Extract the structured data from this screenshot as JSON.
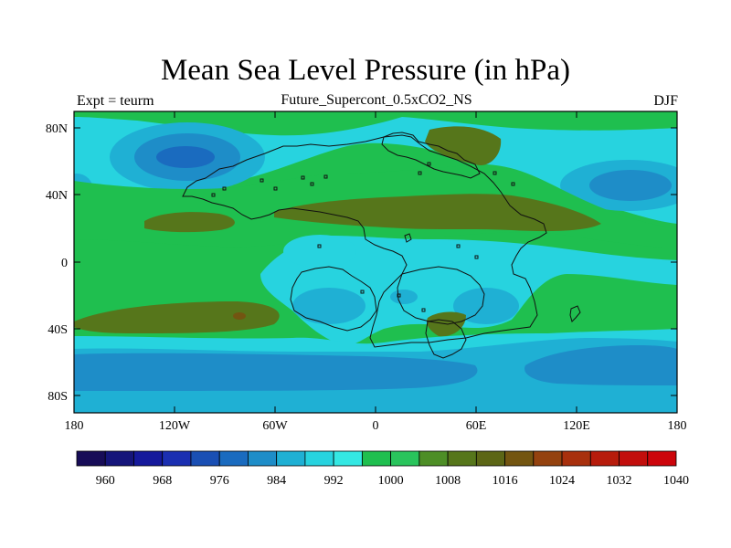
{
  "title": "Mean Sea Level Pressure (in hPa)",
  "subtitle": "Future_Supercont_0.5xCO2_NS",
  "left_label": "Expt = teurm",
  "right_label": "DJF",
  "lat_ticks": [
    "80N",
    "40N",
    "0",
    "40S",
    "80S"
  ],
  "lon_ticks": [
    "180",
    "120W",
    "60W",
    "0",
    "60E",
    "120E",
    "180"
  ],
  "colorbar": {
    "labels": [
      "960",
      "968",
      "976",
      "984",
      "992",
      "1000",
      "1008",
      "1016",
      "1024",
      "1032",
      "1040"
    ],
    "colors": [
      "#170c57",
      "#15157a",
      "#15199b",
      "#1b2fb1",
      "#1a4fb4",
      "#1a6bbf",
      "#1e8dc8",
      "#1fb0d4",
      "#27d3df",
      "#34e8e3",
      "#1fbf4f",
      "#29c45c",
      "#4d8e26",
      "#56761b",
      "#5c6616",
      "#735511",
      "#94420f",
      "#a8300d",
      "#b71c0c",
      "#c20e0c",
      "#cc050b"
    ]
  },
  "colors": {
    "ocean_low_deep": "#1a6bbf",
    "ocean_low": "#1e8dc8",
    "low_band": "#1fb0d4",
    "cyan": "#27d3df",
    "green": "#1fbf4f",
    "high": "#56761b"
  }
}
